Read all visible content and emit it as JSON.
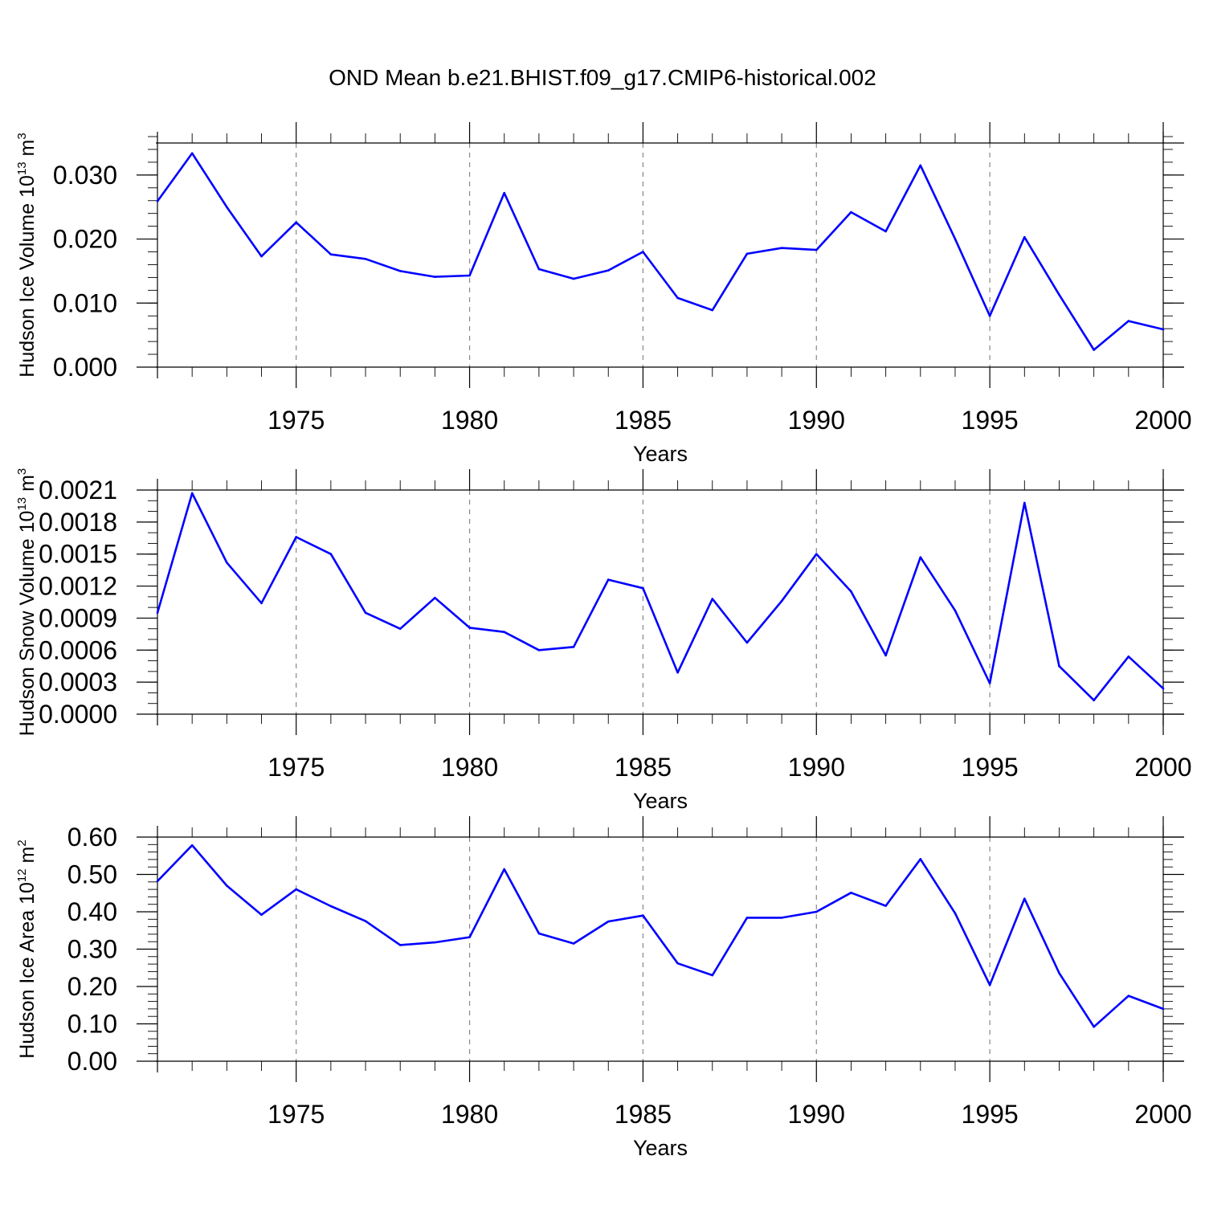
{
  "figure": {
    "title": "OND Mean b.e21.BHIST.f09_g17.CMIP6-historical.002"
  },
  "colors": {
    "series": "#0000ff",
    "axes": "#000000",
    "grid": "#888888"
  },
  "chart_data": [
    {
      "type": "line",
      "xlabel": "Years",
      "ylabel": {
        "text": "Hudson Ice Volume 10",
        "sup": "13",
        "unit": "m",
        "unit_sup": "3"
      },
      "xlim": [
        1971,
        2000
      ],
      "ylim": [
        0.0,
        0.035
      ],
      "xticks": [
        "1975",
        "1980",
        "1985",
        "1990",
        "1995",
        "2000"
      ],
      "yticks": [
        "0.000",
        "0.010",
        "0.020",
        "0.030"
      ],
      "ytick_values": [
        0.0,
        0.01,
        0.02,
        0.03
      ],
      "y_minor_step": 0.002,
      "grid": "dashed vertical at major x ticks",
      "x": [
        1971,
        1972,
        1973,
        1974,
        1975,
        1976,
        1977,
        1978,
        1979,
        1980,
        1981,
        1982,
        1983,
        1984,
        1985,
        1986,
        1987,
        1988,
        1989,
        1990,
        1991,
        1992,
        1993,
        1994,
        1995,
        1996,
        1997,
        1998,
        1999,
        2000
      ],
      "values": [
        0.0259,
        0.0334,
        0.025,
        0.0173,
        0.0226,
        0.0176,
        0.0169,
        0.015,
        0.0141,
        0.0143,
        0.0272,
        0.0153,
        0.0138,
        0.0151,
        0.018,
        0.0108,
        0.0089,
        0.0177,
        0.0186,
        0.0183,
        0.0242,
        0.0212,
        0.0315,
        0.02,
        0.008,
        0.0203,
        0.0113,
        0.0027,
        0.0072,
        0.0059
      ]
    },
    {
      "type": "line",
      "xlabel": "Years",
      "ylabel": {
        "text": "Hudson Snow Volume 10",
        "sup": "13",
        "unit": "m",
        "unit_sup": "3"
      },
      "xlim": [
        1971,
        2000
      ],
      "ylim": [
        0.0,
        0.0021
      ],
      "xticks": [
        "1975",
        "1980",
        "1985",
        "1990",
        "1995",
        "2000"
      ],
      "yticks": [
        "0.0000",
        "0.0003",
        "0.0006",
        "0.0009",
        "0.0012",
        "0.0015",
        "0.0018",
        "0.0021"
      ],
      "ytick_values": [
        0.0,
        0.0003,
        0.0006,
        0.0009,
        0.0012,
        0.0015,
        0.0018,
        0.0021
      ],
      "y_minor_step": 0.0001,
      "grid": "dashed vertical at major x ticks",
      "x": [
        1971,
        1972,
        1973,
        1974,
        1975,
        1976,
        1977,
        1978,
        1979,
        1980,
        1981,
        1982,
        1983,
        1984,
        1985,
        1986,
        1987,
        1988,
        1989,
        1990,
        1991,
        1992,
        1993,
        1994,
        1995,
        1996,
        1997,
        1998,
        1999,
        2000
      ],
      "values": [
        0.00095,
        0.00207,
        0.00142,
        0.00104,
        0.00166,
        0.0015,
        0.00095,
        0.0008,
        0.00109,
        0.00081,
        0.00077,
        0.0006,
        0.00063,
        0.00126,
        0.00118,
        0.00039,
        0.00108,
        0.00067,
        0.00106,
        0.0015,
        0.00115,
        0.00055,
        0.00147,
        0.00097,
        0.00029,
        0.00198,
        0.00045,
        0.00013,
        0.00054,
        0.00024
      ]
    },
    {
      "type": "line",
      "xlabel": "Years",
      "ylabel": {
        "text": "Hudson Ice Area 10",
        "sup": "12",
        "unit": "m",
        "unit_sup": "2"
      },
      "xlim": [
        1971,
        2000
      ],
      "ylim": [
        0.0,
        0.6
      ],
      "xticks": [
        "1975",
        "1980",
        "1985",
        "1990",
        "1995",
        "2000"
      ],
      "yticks": [
        "0.00",
        "0.10",
        "0.20",
        "0.30",
        "0.40",
        "0.50",
        "0.60"
      ],
      "ytick_values": [
        0.0,
        0.1,
        0.2,
        0.3,
        0.4,
        0.5,
        0.6
      ],
      "y_minor_step": 0.02,
      "grid": "dashed vertical at major x ticks",
      "x": [
        1971,
        1972,
        1973,
        1974,
        1975,
        1976,
        1977,
        1978,
        1979,
        1980,
        1981,
        1982,
        1983,
        1984,
        1985,
        1986,
        1987,
        1988,
        1989,
        1990,
        1991,
        1992,
        1993,
        1994,
        1995,
        1996,
        1997,
        1998,
        1999,
        2000
      ],
      "values": [
        0.482,
        0.578,
        0.47,
        0.392,
        0.46,
        0.415,
        0.375,
        0.311,
        0.318,
        0.332,
        0.514,
        0.342,
        0.315,
        0.374,
        0.39,
        0.262,
        0.23,
        0.384,
        0.384,
        0.4,
        0.451,
        0.416,
        0.541,
        0.396,
        0.204,
        0.435,
        0.236,
        0.092,
        0.175,
        0.14
      ]
    }
  ]
}
